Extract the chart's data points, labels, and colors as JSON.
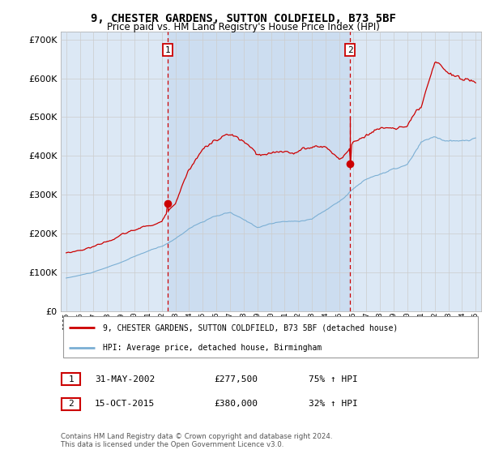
{
  "title": "9, CHESTER GARDENS, SUTTON COLDFIELD, B73 5BF",
  "subtitle": "Price paid vs. HM Land Registry's House Price Index (HPI)",
  "legend_entry1": "9, CHESTER GARDENS, SUTTON COLDFIELD, B73 5BF (detached house)",
  "legend_entry2": "HPI: Average price, detached house, Birmingham",
  "sale1_date": "31-MAY-2002",
  "sale1_price": "£277,500",
  "sale1_hpi": "75% ↑ HPI",
  "sale2_date": "15-OCT-2015",
  "sale2_price": "£380,000",
  "sale2_hpi": "32% ↑ HPI",
  "footer": "Contains HM Land Registry data © Crown copyright and database right 2024.\nThis data is licensed under the Open Government Licence v3.0.",
  "price_color": "#cc0000",
  "hpi_color": "#7bafd4",
  "vline_color": "#cc0000",
  "grid_color": "#cccccc",
  "bg_color": "#ffffff",
  "plot_bg_color": "#dce8f5",
  "shade_color": "#ccddf0",
  "ylim": [
    0,
    720000
  ],
  "yticks": [
    0,
    100000,
    200000,
    300000,
    400000,
    500000,
    600000,
    700000
  ],
  "sale1_x": 2002.417,
  "sale1_y": 277500,
  "sale2_x": 2015.792,
  "sale2_y": 380000,
  "xlim_left": 1994.6,
  "xlim_right": 2025.4
}
